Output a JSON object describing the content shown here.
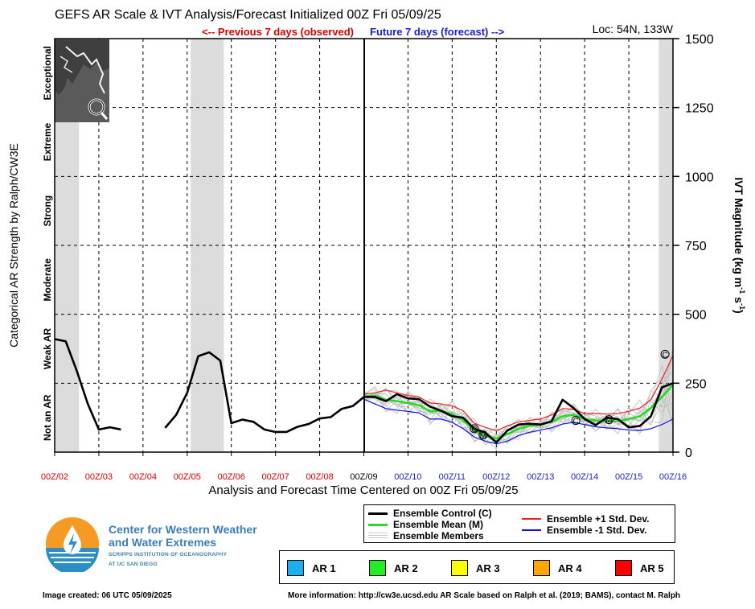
{
  "header": {
    "title": "GEFS AR Scale & IVT Analysis/Forecast Initialized 00Z Fri 05/09/25",
    "location": "Loc: 54N, 133W",
    "previous_label": "<-- Previous 7 days (observed)",
    "future_label": "Future 7 days (forecast) -->"
  },
  "axes": {
    "left_label": "Categorical AR Strength by Ralph/CW3E",
    "right_label_main": "IVT Magnitude (kg m",
    "right_label_sup1": "-1",
    "right_label_mid": " s",
    "right_label_sup2": "-1",
    "right_label_end": ")",
    "xlabel": "Analysis and Forecast Time Centered on 00Z Fri 05/09/25"
  },
  "chart_data": {
    "type": "line",
    "ylim": [
      0,
      1500
    ],
    "xlim": [
      0,
      14
    ],
    "x_unit": "days since 00Z 05/02/25",
    "y_ticks": [
      0,
      250,
      500,
      750,
      1000,
      1250,
      1500
    ],
    "x_ticks": [
      {
        "x": 0,
        "label": "00Z/02",
        "color": "#e00000"
      },
      {
        "x": 1,
        "label": "00Z/03",
        "color": "#e00000"
      },
      {
        "x": 2,
        "label": "00Z/04",
        "color": "#e00000"
      },
      {
        "x": 3,
        "label": "00Z/05",
        "color": "#e00000"
      },
      {
        "x": 4,
        "label": "00Z/06",
        "color": "#e00000"
      },
      {
        "x": 5,
        "label": "00Z/07",
        "color": "#e00000"
      },
      {
        "x": 6,
        "label": "00Z/08",
        "color": "#e00000"
      },
      {
        "x": 7,
        "label": "00Z/09",
        "color": "#000000"
      },
      {
        "x": 8,
        "label": "00Z/10",
        "color": "#2020d0"
      },
      {
        "x": 9,
        "label": "00Z/11",
        "color": "#2020d0"
      },
      {
        "x": 10,
        "label": "00Z/12",
        "color": "#2020d0"
      },
      {
        "x": 11,
        "label": "00Z/13",
        "color": "#2020d0"
      },
      {
        "x": 12,
        "label": "00Z/14",
        "color": "#2020d0"
      },
      {
        "x": 13,
        "label": "00Z/15",
        "color": "#2020d0"
      },
      {
        "x": 14,
        "label": "00Z/16",
        "color": "#2020d0"
      }
    ],
    "categories": [
      {
        "label": "Not an AR",
        "from": 0,
        "to": 250
      },
      {
        "label": "Weak AR",
        "from": 250,
        "to": 500
      },
      {
        "label": "Moderate",
        "from": 500,
        "to": 750
      },
      {
        "label": "Strong",
        "from": 750,
        "to": 1000
      },
      {
        "label": "Extreme",
        "from": 1000,
        "to": 1250
      },
      {
        "label": "Exceptional",
        "from": 1250,
        "to": 1500
      }
    ],
    "ar_periods": [
      {
        "x0": 0,
        "x1": 0.55
      },
      {
        "x0": 3.08,
        "x1": 3.83
      },
      {
        "x0": 13.68,
        "x1": 14
      }
    ],
    "series": [
      {
        "name": "Observed",
        "color": "#000000",
        "segments": [
          [
            [
              0,
              410
            ],
            [
              0.25,
              402
            ],
            [
              0.5,
              295
            ],
            [
              0.75,
              175
            ],
            [
              1,
              82
            ],
            [
              1.25,
              90
            ],
            [
              1.5,
              82
            ]
          ],
          [
            [
              2.5,
              88
            ],
            [
              2.75,
              135
            ],
            [
              3,
              215
            ],
            [
              3.25,
              348
            ],
            [
              3.5,
              362
            ],
            [
              3.75,
              332
            ],
            [
              4,
              105
            ],
            [
              4.25,
              118
            ],
            [
              4.5,
              110
            ],
            [
              4.75,
              82
            ],
            [
              5,
              73
            ],
            [
              5.25,
              73
            ],
            [
              5.5,
              92
            ],
            [
              5.75,
              102
            ],
            [
              6,
              122
            ],
            [
              6.25,
              127
            ],
            [
              6.5,
              157
            ],
            [
              6.75,
              167
            ],
            [
              7,
              200
            ]
          ]
        ]
      },
      {
        "name": "Ensemble Control (C)",
        "color": "#000000",
        "points": [
          [
            7,
            200
          ],
          [
            7.25,
            200
          ],
          [
            7.5,
            185
          ],
          [
            7.75,
            210
          ],
          [
            8,
            195
          ],
          [
            8.25,
            192
          ],
          [
            8.5,
            165
          ],
          [
            8.75,
            150
          ],
          [
            9,
            130
          ],
          [
            9.25,
            125
          ],
          [
            9.5,
            85
          ],
          [
            9.75,
            70
          ],
          [
            10,
            35
          ],
          [
            10.25,
            78
          ],
          [
            10.5,
            100
          ],
          [
            10.75,
            103
          ],
          [
            11,
            100
          ],
          [
            11.25,
            112
          ],
          [
            11.5,
            190
          ],
          [
            11.75,
            160
          ],
          [
            12,
            120
          ],
          [
            12.25,
            98
          ],
          [
            12.5,
            125
          ],
          [
            12.75,
            120
          ],
          [
            13,
            90
          ],
          [
            13.25,
            95
          ],
          [
            13.5,
            130
          ],
          [
            13.75,
            235
          ],
          [
            14,
            250
          ]
        ]
      },
      {
        "name": "Ensemble Mean (M)",
        "color": "#22dd22",
        "points": [
          [
            7,
            202
          ],
          [
            7.25,
            205
          ],
          [
            7.5,
            190
          ],
          [
            7.75,
            185
          ],
          [
            8,
            178
          ],
          [
            8.25,
            170
          ],
          [
            8.5,
            148
          ],
          [
            8.75,
            150
          ],
          [
            9,
            138
          ],
          [
            9.25,
            115
          ],
          [
            9.5,
            80
          ],
          [
            9.75,
            58
          ],
          [
            10,
            50
          ],
          [
            10.25,
            65
          ],
          [
            10.5,
            85
          ],
          [
            10.75,
            95
          ],
          [
            11,
            100
          ],
          [
            11.25,
            110
          ],
          [
            11.5,
            130
          ],
          [
            11.75,
            135
          ],
          [
            12,
            120
          ],
          [
            12.25,
            115
          ],
          [
            12.5,
            112
          ],
          [
            12.75,
            112
          ],
          [
            13,
            120
          ],
          [
            13.25,
            130
          ],
          [
            13.5,
            160
          ],
          [
            13.75,
            200
          ],
          [
            14,
            245
          ]
        ]
      },
      {
        "name": "Ensemble +1 Std. Dev.",
        "color": "#ee2020",
        "points": [
          [
            7,
            210
          ],
          [
            7.25,
            215
          ],
          [
            7.5,
            225
          ],
          [
            7.75,
            215
          ],
          [
            8,
            205
          ],
          [
            8.25,
            200
          ],
          [
            8.5,
            178
          ],
          [
            8.75,
            175
          ],
          [
            9,
            168
          ],
          [
            9.25,
            150
          ],
          [
            9.5,
            105
          ],
          [
            9.75,
            90
          ],
          [
            10,
            78
          ],
          [
            10.25,
            95
          ],
          [
            10.5,
            110
          ],
          [
            10.75,
            115
          ],
          [
            11,
            120
          ],
          [
            11.25,
            135
          ],
          [
            11.5,
            158
          ],
          [
            11.75,
            155
          ],
          [
            12,
            140
          ],
          [
            12.25,
            140
          ],
          [
            12.5,
            138
          ],
          [
            12.75,
            140
          ],
          [
            13,
            148
          ],
          [
            13.25,
            160
          ],
          [
            13.5,
            190
          ],
          [
            13.75,
            265
          ],
          [
            14,
            350
          ]
        ]
      },
      {
        "name": "Ensemble -1 Std. Dev.",
        "color": "#1010ee",
        "points": [
          [
            7,
            192
          ],
          [
            7.25,
            175
          ],
          [
            7.5,
            158
          ],
          [
            7.75,
            152
          ],
          [
            8,
            148
          ],
          [
            8.25,
            142
          ],
          [
            8.5,
            120
          ],
          [
            8.75,
            120
          ],
          [
            9,
            108
          ],
          [
            9.25,
            85
          ],
          [
            9.5,
            55
          ],
          [
            9.75,
            40
          ],
          [
            10,
            30
          ],
          [
            10.25,
            40
          ],
          [
            10.5,
            60
          ],
          [
            10.75,
            72
          ],
          [
            11,
            80
          ],
          [
            11.25,
            88
          ],
          [
            11.5,
            102
          ],
          [
            11.75,
            108
          ],
          [
            12,
            100
          ],
          [
            12.25,
            92
          ],
          [
            12.5,
            88
          ],
          [
            12.75,
            85
          ],
          [
            13,
            80
          ],
          [
            13.25,
            78
          ],
          [
            13.5,
            85
          ],
          [
            13.75,
            100
          ],
          [
            14,
            120
          ]
        ]
      }
    ],
    "markers": [
      {
        "series": "Ensemble Control (C)",
        "x": 9.5,
        "y": 85,
        "label": "C"
      },
      {
        "series": "Ensemble Mean (M)",
        "x": 9.7,
        "y": 62,
        "label": "M"
      },
      {
        "series": "Ensemble Control (C)",
        "x": 11.8,
        "y": 115,
        "label": "C"
      },
      {
        "series": "Ensemble Mean (M)",
        "x": 12.55,
        "y": 118,
        "label": "M"
      },
      {
        "series": "Ensemble Control (C)",
        "x": 13.82,
        "y": 355,
        "label": "C"
      }
    ]
  },
  "legend": {
    "control": "Ensemble Control (C)",
    "mean": "Ensemble Mean (M)",
    "members": "Ensemble Members",
    "plus_std": "Ensemble +1 Std. Dev.",
    "minus_std": "Ensemble -1 Std. Dev.",
    "colors": {
      "control": "#000000",
      "mean": "#22dd22",
      "members": "#c8c8c8",
      "plus_std": "#ee2020",
      "minus_std": "#1010ee"
    }
  },
  "ar_scale": [
    {
      "label": "AR 1",
      "color": "#1ab0f0"
    },
    {
      "label": "AR 2",
      "color": "#22ee22"
    },
    {
      "label": "AR 3",
      "color": "#ffff00"
    },
    {
      "label": "AR 4",
      "color": "#ffa500"
    },
    {
      "label": "AR 5",
      "color": "#ff0000"
    }
  ],
  "logo": {
    "title_line1": "Center for Western Weather",
    "title_line2": "and Water Extremes",
    "sub_line1": "SCRIPPS INSTITUTION OF OCEANOGRAPHY",
    "sub_line2": "AT UC SAN DIEGO"
  },
  "footer": {
    "created": "Image created: 06 UTC 05/09/2025",
    "info": "More information: http://cw3e.ucsd.edu  AR Scale based on Ralph et al. (2019; BAMS), contact M. Ralph"
  }
}
